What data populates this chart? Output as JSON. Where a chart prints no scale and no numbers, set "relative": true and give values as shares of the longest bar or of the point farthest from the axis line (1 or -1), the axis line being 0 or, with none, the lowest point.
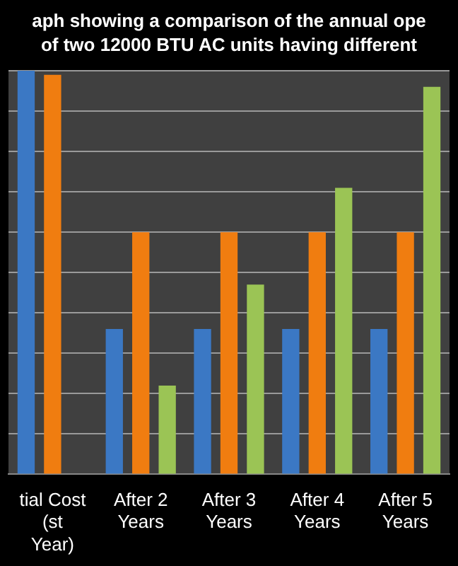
{
  "chart_data": {
    "type": "bar",
    "title": "aph showing a comparison of the annual ope",
    "subtitle": "of two 12000  BTU AC units having different",
    "categories": [
      "tial Cost (st Year)",
      "After 2 Years",
      "After 3 Years",
      "After 4 Years",
      "After 5 Years"
    ],
    "series": [
      {
        "color": "#3b78c4",
        "values": [
          1,
          0.36,
          0.36,
          0.36,
          0.36
        ]
      },
      {
        "color": "#f07d10",
        "values": [
          0.99,
          0.6,
          0.6,
          0.6,
          0.6
        ]
      },
      {
        "color": "#9bc455",
        "values": [
          null,
          0.22,
          0.47,
          0.71,
          0.96
        ]
      }
    ],
    "relative": true,
    "grid": "y",
    "legend": false
  }
}
